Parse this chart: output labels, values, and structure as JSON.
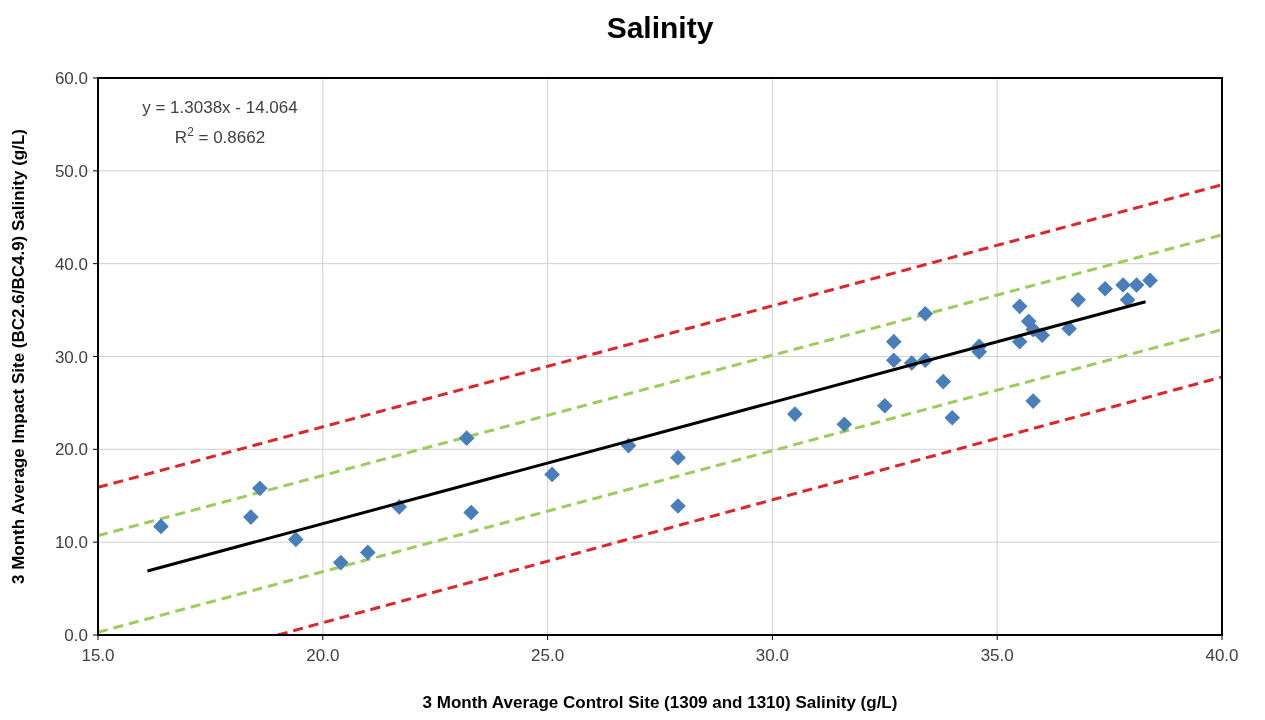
{
  "chart_data": {
    "type": "scatter",
    "title": "Salinity",
    "xlabel": "3 Month Average Control Site (1309 and 1310) Salinity (g/L)",
    "ylabel": "3 Month Average Impact Site (BC2.6/BC4.9)  Salinity (g/L)",
    "xlim": [
      15,
      40
    ],
    "ylim": [
      0,
      60
    ],
    "xticks": [
      {
        "value": 15,
        "label": "15.0"
      },
      {
        "value": 20,
        "label": "20.0"
      },
      {
        "value": 25,
        "label": "25.0"
      },
      {
        "value": 30,
        "label": "30.0"
      },
      {
        "value": 35,
        "label": "35.0"
      },
      {
        "value": 40,
        "label": "40.0"
      }
    ],
    "yticks": [
      {
        "value": 0,
        "label": "0.0"
      },
      {
        "value": 10,
        "label": "10.0"
      },
      {
        "value": 20,
        "label": "20.0"
      },
      {
        "value": 30,
        "label": "30.0"
      },
      {
        "value": 40,
        "label": "40.0"
      },
      {
        "value": 50,
        "label": "50.0"
      },
      {
        "value": 60,
        "label": "60.0"
      }
    ],
    "grid": true,
    "annotations": [
      "y = 1.3038x - 14.064",
      "R$^{2}$ = 0.8662"
    ],
    "series": [
      {
        "type": "line",
        "marker": "none",
        "color": "#e0242a",
        "line_style": "dashed",
        "x": [
          15,
          40
        ],
        "values": [
          15.9,
          48.5
        ]
      },
      {
        "type": "line",
        "marker": "none",
        "color": "#9acd5a",
        "line_style": "dashed",
        "x": [
          15,
          40
        ],
        "values": [
          10.7,
          43.1
        ]
      },
      {
        "type": "line",
        "marker": "none",
        "color": "#9acd5a",
        "line_style": "dashed",
        "x": [
          15,
          40
        ],
        "values": [
          0.3,
          32.9
        ]
      },
      {
        "type": "line",
        "marker": "none",
        "color": "#e0242a",
        "line_style": "dashed",
        "x": [
          19,
          40
        ],
        "values": [
          0,
          27.8
        ]
      },
      {
        "marker": "diamond",
        "color": "#4a7ebb",
        "x": [
          16.4,
          18.4,
          18.6,
          19.4,
          20.4,
          21.0,
          21.7,
          23.2,
          23.3,
          25.1,
          26.8,
          27.9,
          27.9,
          30.5,
          31.6,
          32.5,
          32.7,
          32.7,
          33.1,
          33.4,
          33.4,
          33.8,
          34.0,
          34.6,
          34.6,
          35.5,
          35.5,
          35.7,
          35.8,
          35.8,
          36.0,
          36.6,
          36.8,
          37.4,
          37.8,
          37.9,
          38.1,
          38.4
        ],
        "values": [
          11.7,
          12.7,
          15.8,
          10.3,
          7.8,
          8.9,
          13.8,
          21.2,
          13.2,
          17.3,
          20.4,
          13.9,
          19.1,
          23.8,
          22.7,
          24.7,
          31.6,
          29.6,
          29.3,
          29.6,
          34.6,
          27.3,
          23.4,
          31.1,
          30.5,
          35.4,
          31.6,
          33.8,
          32.9,
          25.2,
          32.3,
          33.0,
          36.1,
          37.3,
          37.7,
          36.1,
          37.7,
          38.2
        ]
      },
      {
        "type": "line",
        "marker": "none",
        "color": "#000000",
        "line_style": "solid",
        "x": [
          16.1,
          38.3
        ],
        "values": [
          6.9,
          35.9
        ]
      }
    ]
  }
}
